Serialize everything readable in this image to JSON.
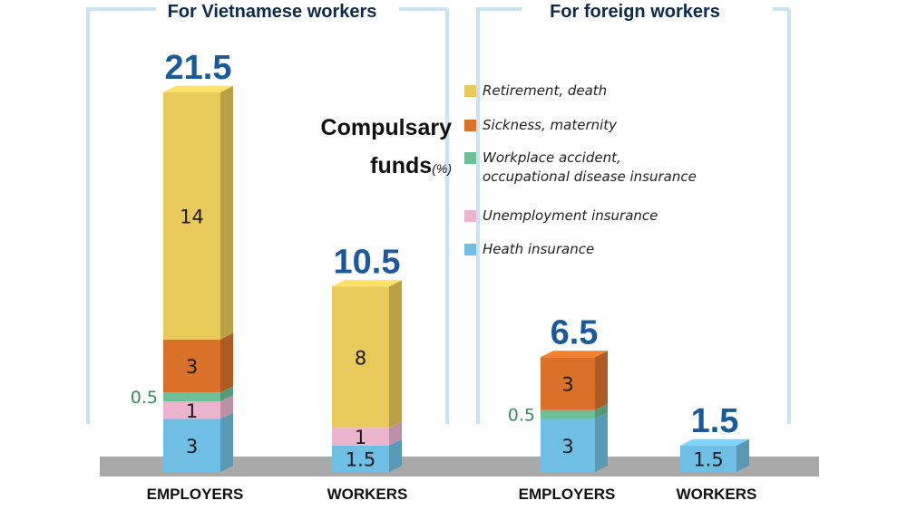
{
  "chart_data": {
    "type": "bar",
    "stacked": true,
    "title": "Compulsary",
    "subtitle": "funds",
    "unit": "(%)",
    "groups": [
      {
        "name": "For Vietnamese workers",
        "categories": [
          "EMPLOYERS",
          "WORKERS"
        ]
      },
      {
        "name": "For foreign workers",
        "categories": [
          "EMPLOYERS",
          "WORKERS"
        ]
      }
    ],
    "categories": [
      "EMPLOYERS",
      "WORKERS",
      "EMPLOYERS",
      "WORKERS"
    ],
    "series": [
      {
        "name": "Heath insurance",
        "color": "#6fbfe4",
        "values": [
          3,
          1.5,
          3,
          1.5
        ]
      },
      {
        "name": "Unemployment insurance",
        "color": "#ecb4cf",
        "values": [
          1,
          1,
          0,
          0
        ]
      },
      {
        "name": "Workplace accident, occupational disease insurance",
        "color": "#6cbf96",
        "values": [
          0.5,
          0,
          0.5,
          0
        ]
      },
      {
        "name": "Sickness, maternity",
        "color": "#d9712a",
        "values": [
          3,
          0,
          3,
          0
        ]
      },
      {
        "name": "Retirement, death",
        "color": "#e9c95a",
        "values": [
          14,
          8,
          0,
          0
        ]
      }
    ],
    "totals": [
      "21.5",
      "10.5",
      "6.5",
      "1.5"
    ],
    "segment_labels": [
      [
        "3",
        "1",
        "0.5",
        "3",
        "14"
      ],
      [
        "1.5",
        "1",
        "",
        "",
        "8"
      ],
      [
        "3",
        "",
        "0.5",
        "3",
        ""
      ],
      [
        "1.5",
        "",
        "",
        "",
        ""
      ]
    ],
    "legend": [
      {
        "label": "Retirement, death",
        "color": "#e9c95a"
      },
      {
        "label": "Sickness, maternity",
        "color": "#d9712a"
      },
      {
        "label": "Workplace accident,\noccupational disease insurance",
        "color": "#6cbf96"
      },
      {
        "label": "Unemployment insurance",
        "color": "#ecb4cf"
      },
      {
        "label": "Heath insurance",
        "color": "#6fbfe4"
      }
    ],
    "colors": {
      "total_label": "#1a5a9c",
      "small_label": "#3a8a5e",
      "frame": "#c9e3f3",
      "floor": "#a9a9a9"
    }
  }
}
